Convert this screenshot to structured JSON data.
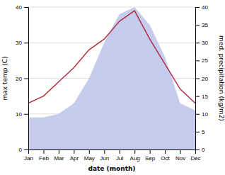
{
  "chart_data": {
    "type": "line",
    "categories": [
      "Jan",
      "Feb",
      "Mar",
      "Apr",
      "May",
      "Jun",
      "Jul",
      "Aug",
      "Sep",
      "Oct",
      "Nov",
      "Dec"
    ],
    "series": [
      {
        "type": "area",
        "color": "#c5ccee",
        "axis": "y2",
        "values": [
          9,
          9,
          10,
          13,
          20,
          30,
          38,
          40,
          35,
          26,
          13,
          11
        ]
      },
      {
        "type": "line",
        "color": "#b03040",
        "values": [
          13,
          15,
          19,
          23,
          28,
          31,
          36,
          39,
          31,
          24,
          17,
          13
        ]
      }
    ],
    "xlabel": "date (month)",
    "ylabel": "max temp (C)",
    "y2label": "med. precipitation (kg/m2)",
    "ylim": [
      0,
      40
    ],
    "yticks": [
      0,
      10,
      20,
      30,
      40
    ],
    "y2lim": [
      0,
      40
    ],
    "y2ticks": [
      0,
      5,
      10,
      15,
      20,
      25,
      30,
      35,
      40
    ],
    "grid": true
  }
}
